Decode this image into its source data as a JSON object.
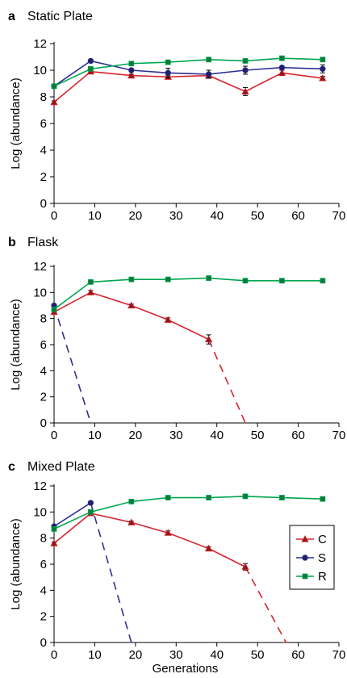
{
  "colors": {
    "C": "#d9232e",
    "S": "#2e3192",
    "R": "#00a651"
  },
  "legend": [
    {
      "key": "C",
      "label": "C",
      "marker": "triangle"
    },
    {
      "key": "S",
      "label": "S",
      "marker": "circle"
    },
    {
      "key": "R",
      "label": "R",
      "marker": "square"
    }
  ],
  "chart_data": [
    {
      "type": "line",
      "panel_letter": "a",
      "title": "Static Plate",
      "xlabel": "",
      "ylabel": "Log (abundance)",
      "xlim": [
        0,
        70
      ],
      "ylim": [
        0,
        12
      ],
      "xticks": [
        0,
        10,
        20,
        30,
        40,
        50,
        60,
        70
      ],
      "yticks": [
        0,
        2,
        4,
        6,
        8,
        10,
        12
      ],
      "series": [
        {
          "name": "C",
          "x": [
            0,
            9,
            19,
            28,
            38,
            47,
            56,
            66
          ],
          "y": [
            7.6,
            9.9,
            9.6,
            9.5,
            9.6,
            8.4,
            9.8,
            9.4
          ],
          "err": [
            0.1,
            0.1,
            0.1,
            0.1,
            0.2,
            0.3,
            0.2,
            0.15
          ]
        },
        {
          "name": "S",
          "x": [
            0,
            9,
            19,
            28,
            38,
            47,
            56,
            66
          ],
          "y": [
            8.8,
            10.7,
            10.0,
            9.8,
            9.7,
            10.0,
            10.2,
            10.1
          ],
          "err": [
            0.1,
            0.1,
            0.1,
            0.35,
            0.3,
            0.3,
            0.1,
            0.3
          ]
        },
        {
          "name": "R",
          "x": [
            0,
            9,
            19,
            28,
            38,
            47,
            56,
            66
          ],
          "y": [
            8.8,
            10.1,
            10.5,
            10.6,
            10.8,
            10.7,
            10.9,
            10.8
          ],
          "err": [
            0.1,
            0.1,
            0.1,
            0.1,
            0.1,
            0.1,
            0.1,
            0.1
          ]
        }
      ],
      "extinctions": [],
      "legend": false
    },
    {
      "type": "line",
      "panel_letter": "b",
      "title": "Flask",
      "xlabel": "",
      "ylabel": "Log (abundance)",
      "xlim": [
        0,
        70
      ],
      "ylim": [
        0,
        12
      ],
      "xticks": [
        0,
        10,
        20,
        30,
        40,
        50,
        60,
        70
      ],
      "yticks": [
        0,
        2,
        4,
        6,
        8,
        10,
        12
      ],
      "series": [
        {
          "name": "C",
          "x": [
            0,
            9,
            19,
            28,
            38
          ],
          "y": [
            8.5,
            10.0,
            9.0,
            7.9,
            6.4
          ],
          "err": [
            0.1,
            0.15,
            0.1,
            0.15,
            0.35
          ]
        },
        {
          "name": "S",
          "x": [
            0
          ],
          "y": [
            9.0
          ],
          "err": [
            0.1
          ]
        },
        {
          "name": "R",
          "x": [
            0,
            9,
            19,
            28,
            38,
            47,
            56,
            66
          ],
          "y": [
            8.7,
            10.8,
            11.0,
            11.0,
            11.1,
            10.9,
            10.9,
            10.9
          ],
          "err": [
            0.1,
            0.1,
            0.1,
            0.1,
            0.1,
            0.1,
            0.1,
            0.1
          ]
        }
      ],
      "extinctions": [
        {
          "series": "S",
          "from": [
            0,
            9.0
          ],
          "to": [
            9,
            0
          ]
        },
        {
          "series": "C",
          "from": [
            38,
            6.4
          ],
          "to": [
            47,
            0
          ]
        }
      ],
      "legend": false
    },
    {
      "type": "line",
      "panel_letter": "c",
      "title": "Mixed Plate",
      "xlabel": "Generations",
      "ylabel": "Log (abundance)",
      "xlim": [
        0,
        70
      ],
      "ylim": [
        0,
        12
      ],
      "xticks": [
        0,
        10,
        20,
        30,
        40,
        50,
        60,
        70
      ],
      "yticks": [
        0,
        2,
        4,
        6,
        8,
        10,
        12
      ],
      "series": [
        {
          "name": "C",
          "x": [
            0,
            9,
            19,
            28,
            38,
            47
          ],
          "y": [
            7.6,
            9.9,
            9.2,
            8.4,
            7.2,
            5.8
          ],
          "err": [
            0.1,
            0.15,
            0.1,
            0.15,
            0.15,
            0.25
          ]
        },
        {
          "name": "S",
          "x": [
            0,
            9
          ],
          "y": [
            8.9,
            10.7
          ],
          "err": [
            0.1,
            0.1
          ]
        },
        {
          "name": "R",
          "x": [
            0,
            9,
            19,
            28,
            38,
            47,
            56,
            66
          ],
          "y": [
            8.7,
            10.0,
            10.8,
            11.1,
            11.1,
            11.2,
            11.1,
            11.0
          ],
          "err": [
            0.1,
            0.1,
            0.1,
            0.1,
            0.1,
            0.1,
            0.1,
            0.1
          ]
        }
      ],
      "extinctions": [
        {
          "series": "S",
          "from": [
            9,
            10.7
          ],
          "to": [
            19,
            0
          ]
        },
        {
          "series": "C",
          "from": [
            47,
            5.8
          ],
          "to": [
            57,
            0
          ]
        }
      ],
      "legend": true,
      "legend_position": "right"
    }
  ]
}
